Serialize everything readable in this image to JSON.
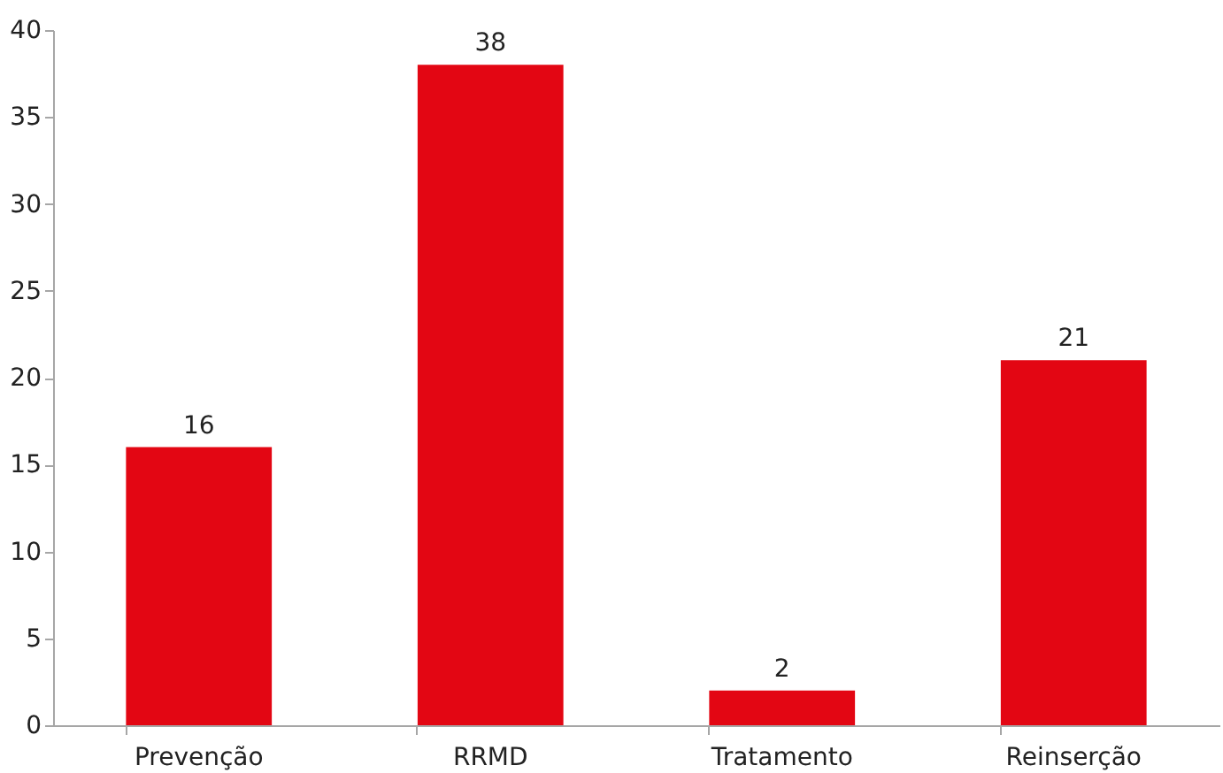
{
  "chart_data": {
    "type": "bar",
    "categories": [
      "Prevenção",
      "RRMD",
      "Tratamento",
      "Reinserção"
    ],
    "values": [
      16,
      38,
      2,
      21
    ],
    "color": "#e30613",
    "ylim": [
      0,
      40
    ],
    "yticks": [
      0,
      5,
      10,
      15,
      20,
      25,
      30,
      35,
      40
    ],
    "grid": false,
    "data_labels": true
  }
}
